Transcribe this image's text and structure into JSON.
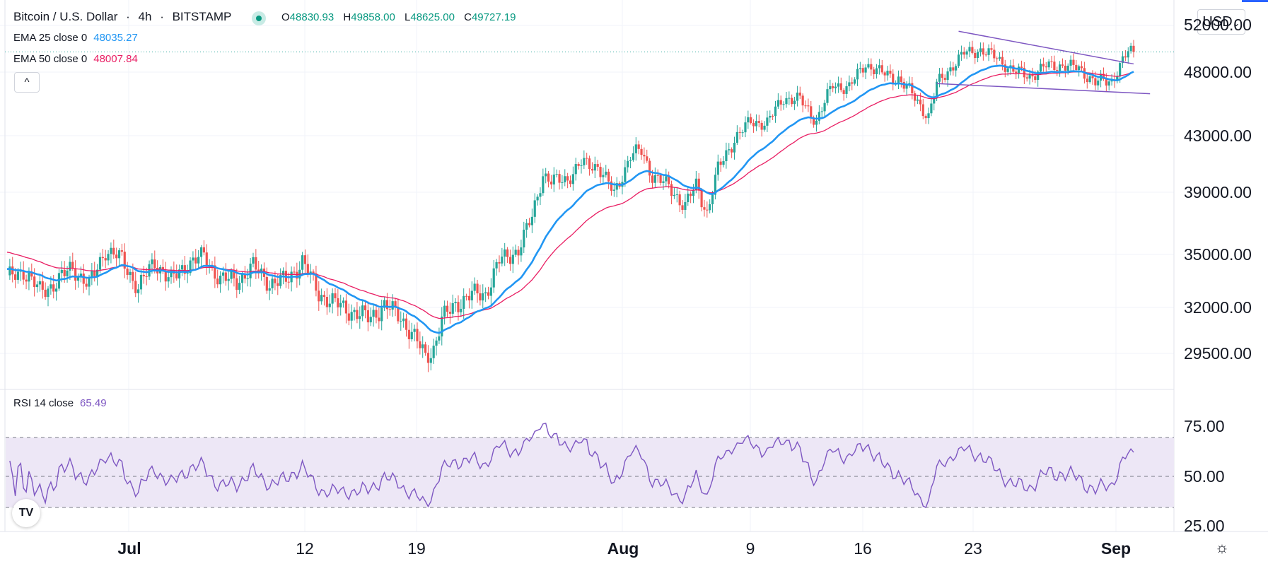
{
  "header": {
    "symbol": "Bitcoin / U.S. Dollar",
    "interval": "4h",
    "exchange": "BITSTAMP",
    "ohlc": {
      "o_label": "O",
      "o": "48830.93",
      "h_label": "H",
      "h": "49858.00",
      "l_label": "L",
      "l": "48625.00",
      "c_label": "C",
      "c": "49727.19"
    }
  },
  "indicators": {
    "ema25": {
      "label": "EMA 25 close 0",
      "value": "48035.27"
    },
    "ema50": {
      "label": "EMA 50 close 0",
      "value": "48007.84"
    },
    "rsi": {
      "label": "RSI 14 close",
      "value": "65.49"
    }
  },
  "controls": {
    "collapse": "^",
    "currency": "USD",
    "currency_caret": "⌄"
  },
  "price_axis": {
    "labels": [
      "52000.00",
      "48000.00",
      "43000.00",
      "39000.00",
      "35000.00",
      "32000.00",
      "29500.00"
    ]
  },
  "rsi_axis": {
    "labels": [
      "75.00",
      "50.00",
      "25.00"
    ]
  },
  "time_axis": {
    "labels": [
      {
        "text": "Jul",
        "bold": true
      },
      {
        "text": "12",
        "bold": false
      },
      {
        "text": "19",
        "bold": false
      },
      {
        "text": "Aug",
        "bold": true
      },
      {
        "text": "9",
        "bold": false
      },
      {
        "text": "16",
        "bold": false
      },
      {
        "text": "23",
        "bold": false
      },
      {
        "text": "Sep",
        "bold": true
      }
    ]
  },
  "colors": {
    "up": "#26a69a",
    "down": "#ef5350",
    "ema25": "#2196f3",
    "ema50": "#e91e63",
    "rsi": "#7e57c2",
    "channel": "#7e57c2",
    "rsi_band": "#ede7f6"
  },
  "chart_data": {
    "type": "candlestick",
    "title": "Bitcoin / U.S. Dollar · 4h · BITSTAMP",
    "y_range": [
      27500,
      53000
    ],
    "price_ticks": [
      52000,
      48000,
      43000,
      39000,
      35000,
      32000,
      29500
    ],
    "rsi_range": [
      20,
      95
    ],
    "rsi_ticks": [
      75,
      50,
      25
    ],
    "x_ticks": [
      "Jul",
      "12",
      "19",
      "Aug",
      "9",
      "16",
      "23",
      "Sep"
    ],
    "close_keypoints": [
      [
        0,
        33600
      ],
      [
        6,
        34100
      ],
      [
        12,
        32900
      ],
      [
        18,
        33400
      ],
      [
        24,
        34300
      ],
      [
        30,
        33200
      ],
      [
        36,
        35300
      ],
      [
        42,
        34700
      ],
      [
        48,
        33100
      ],
      [
        54,
        34600
      ],
      [
        60,
        33500
      ],
      [
        66,
        34500
      ],
      [
        72,
        34900
      ],
      [
        78,
        33600
      ],
      [
        84,
        33500
      ],
      [
        90,
        34300
      ],
      [
        96,
        33400
      ],
      [
        102,
        33500
      ],
      [
        108,
        34600
      ],
      [
        114,
        32800
      ],
      [
        120,
        32200
      ],
      [
        126,
        31800
      ],
      [
        132,
        31400
      ],
      [
        138,
        32100
      ],
      [
        144,
        31500
      ],
      [
        150,
        30100
      ],
      [
        153,
        29300
      ],
      [
        156,
        29800
      ],
      [
        159,
        31300
      ],
      [
        164,
        32200
      ],
      [
        170,
        32700
      ],
      [
        175,
        32800
      ],
      [
        180,
        34600
      ],
      [
        187,
        35300
      ],
      [
        192,
        37400
      ],
      [
        196,
        40300
      ],
      [
        199,
        39700
      ],
      [
        205,
        40000
      ],
      [
        210,
        41000
      ],
      [
        216,
        40900
      ],
      [
        222,
        38900
      ],
      [
        228,
        41600
      ],
      [
        232,
        41900
      ],
      [
        236,
        40200
      ],
      [
        242,
        39400
      ],
      [
        248,
        38100
      ],
      [
        252,
        39500
      ],
      [
        256,
        37700
      ],
      [
        260,
        40600
      ],
      [
        266,
        42800
      ],
      [
        272,
        44100
      ],
      [
        278,
        44000
      ],
      [
        284,
        46000
      ],
      [
        290,
        45800
      ],
      [
        296,
        44200
      ],
      [
        302,
        47000
      ],
      [
        308,
        46800
      ],
      [
        314,
        48700
      ],
      [
        320,
        47900
      ],
      [
        326,
        47500
      ],
      [
        332,
        46000
      ],
      [
        337,
        44500
      ],
      [
        340,
        47000
      ],
      [
        344,
        48100
      ],
      [
        350,
        49600
      ],
      [
        356,
        49900
      ],
      [
        362,
        49200
      ],
      [
        368,
        48100
      ],
      [
        374,
        47700
      ],
      [
        380,
        48500
      ],
      [
        386,
        48600
      ],
      [
        392,
        48300
      ],
      [
        398,
        47200
      ],
      [
        404,
        47300
      ],
      [
        408,
        49000
      ],
      [
        410,
        49700
      ]
    ],
    "ema25_last": 48035.27,
    "ema50_last": 48007.84,
    "rsi_last": 65.49,
    "channel": {
      "upper": [
        [
          348,
          51500
        ],
        [
          412,
          48700
        ]
      ],
      "lower": [
        [
          340,
          47100
        ],
        [
          418,
          46300
        ]
      ]
    },
    "last_price": 49727.19
  }
}
